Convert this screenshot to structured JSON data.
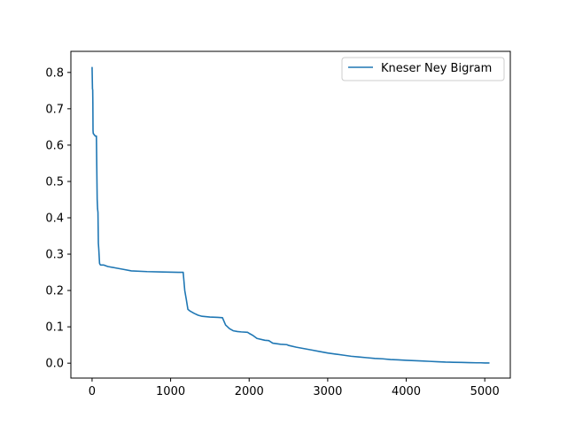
{
  "chart_data": {
    "type": "line",
    "title": "",
    "xlabel": "",
    "ylabel": "",
    "xlim": [
      -270,
      5325
    ],
    "ylim": [
      -0.041,
      0.858
    ],
    "x_ticks": [
      0,
      1000,
      2000,
      3000,
      4000,
      5000
    ],
    "y_ticks": [
      0.0,
      0.1,
      0.2,
      0.3,
      0.4,
      0.5,
      0.6,
      0.7,
      0.8
    ],
    "x_tick_labels": [
      "0",
      "1000",
      "2000",
      "3000",
      "4000",
      "5000"
    ],
    "y_tick_labels": [
      "0.0",
      "0.1",
      "0.2",
      "0.3",
      "0.4",
      "0.5",
      "0.6",
      "0.7",
      "0.8"
    ],
    "grid": false,
    "legend": {
      "placement": "top-right",
      "entries": [
        "Kneser Ney Bigram"
      ]
    },
    "series": [
      {
        "name": "Kneser Ney Bigram",
        "color": "#1f77b4",
        "x": [
          0,
          5,
          8,
          10,
          12,
          15,
          40,
          55,
          65,
          70,
          75,
          80,
          85,
          95,
          100,
          110,
          150,
          200,
          300,
          400,
          500,
          700,
          900,
          1100,
          1160,
          1180,
          1200,
          1220,
          1250,
          1300,
          1350,
          1400,
          1500,
          1600,
          1660,
          1700,
          1750,
          1800,
          1850,
          1900,
          1980,
          2000,
          2050,
          2100,
          2200,
          2250,
          2300,
          2400,
          2480,
          2500,
          2600,
          2700,
          2800,
          2900,
          3000,
          3100,
          3200,
          3300,
          3400,
          3500,
          3600,
          3700,
          3800,
          3900,
          4000,
          4100,
          4200,
          4300,
          4400,
          4500,
          4600,
          4700,
          4800,
          4900,
          4950,
          5000,
          5060
        ],
        "y": [
          0.815,
          0.755,
          0.752,
          0.715,
          0.64,
          0.632,
          0.625,
          0.625,
          0.45,
          0.425,
          0.415,
          0.33,
          0.315,
          0.275,
          0.272,
          0.27,
          0.27,
          0.266,
          0.262,
          0.258,
          0.254,
          0.252,
          0.251,
          0.25,
          0.25,
          0.2,
          0.175,
          0.148,
          0.143,
          0.137,
          0.132,
          0.129,
          0.127,
          0.126,
          0.125,
          0.105,
          0.095,
          0.089,
          0.087,
          0.086,
          0.085,
          0.082,
          0.076,
          0.068,
          0.063,
          0.062,
          0.055,
          0.052,
          0.051,
          0.049,
          0.044,
          0.04,
          0.036,
          0.032,
          0.028,
          0.025,
          0.022,
          0.019,
          0.017,
          0.015,
          0.013,
          0.012,
          0.01,
          0.009,
          0.008,
          0.007,
          0.006,
          0.005,
          0.004,
          0.003,
          0.0025,
          0.002,
          0.0015,
          0.001,
          0.001,
          0.0005,
          0.0005
        ]
      }
    ]
  }
}
